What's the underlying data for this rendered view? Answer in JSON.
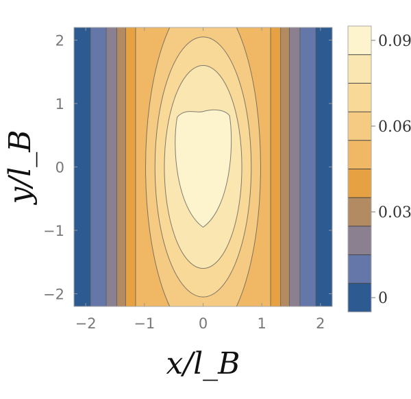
{
  "chart_data": {
    "type": "contour",
    "x": {
      "min": -2.2,
      "max": 2.2,
      "ticks": [
        "−2",
        "−1",
        "0",
        "1",
        "2"
      ],
      "tick_values": [
        -2,
        -1,
        0,
        1,
        2
      ]
    },
    "y": {
      "min": -2.2,
      "max": 2.2,
      "ticks": [
        "−2",
        "−1",
        "0",
        "1",
        "2"
      ],
      "tick_values": [
        -2,
        -1,
        0,
        1,
        2
      ]
    },
    "xlabel": "x/l_B",
    "ylabel": "y/l_B",
    "colorbar": {
      "min": 0,
      "max": 0.09,
      "tick_labels": [
        "0.09",
        "0.06",
        "0.03",
        "0"
      ],
      "tick_values": [
        0.09,
        0.06,
        0.03,
        0
      ],
      "levels": [
        0,
        0.01,
        0.02,
        0.03,
        0.04,
        0.05,
        0.06,
        0.07,
        0.08,
        0.09
      ],
      "colors": [
        "#2e5a92",
        "#6577a8",
        "#8a8090",
        "#b28b63",
        "#e6a142",
        "#f0b865",
        "#f5ca82",
        "#f8d998",
        "#fae6b0",
        "#fdf3cc"
      ]
    },
    "contours": [
      {
        "level": 0.01,
        "x_half_width": 1.92
      },
      {
        "level": 0.02,
        "x_half_width": 1.65
      },
      {
        "level": 0.03,
        "x_half_width": 1.47
      },
      {
        "level": 0.04,
        "x_half_width": 1.32
      },
      {
        "level": 0.05,
        "x_half_width": 1.15
      },
      {
        "level": 0.06,
        "x_half_width": 0.98,
        "y_half_height": 2.7
      },
      {
        "level": 0.07,
        "x_half_width": 0.82,
        "y_half_height": 2.05
      },
      {
        "level": 0.08,
        "x_half_width": 0.66,
        "y_half_height": 1.6
      },
      {
        "level": 0.085,
        "x_half_width": 0.49,
        "y_half_height": 0.95
      }
    ]
  }
}
